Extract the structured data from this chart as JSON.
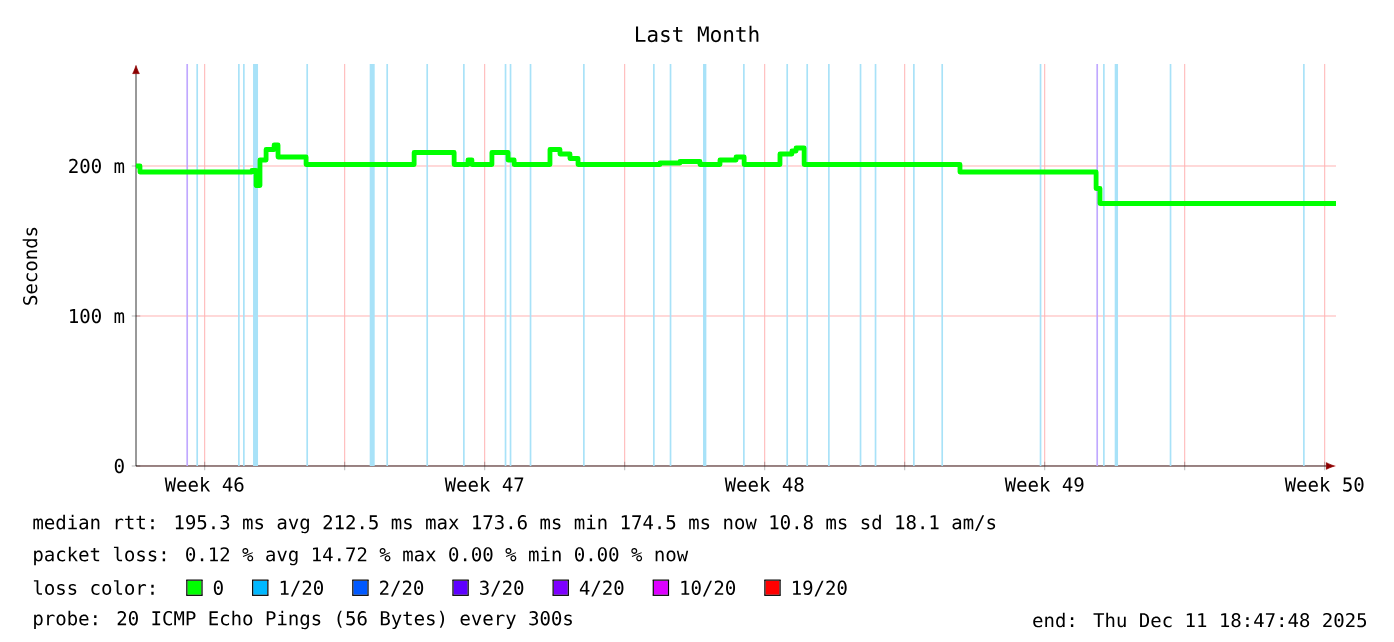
{
  "chart_data": {
    "type": "step",
    "title": "Last Month",
    "ylabel": "Seconds",
    "xlim": [
      "2025-11-11T18:47",
      "2025-12-11T18:47"
    ],
    "ylim": [
      0,
      268
    ],
    "xticks": [
      {
        "value": "2025-11-13T12:00",
        "label": "Week 46"
      },
      {
        "value": "2025-11-17",
        "label": null
      },
      {
        "value": "2025-11-20T12:00",
        "label": "Week 47"
      },
      {
        "value": "2025-11-24",
        "label": null
      },
      {
        "value": "2025-11-27T12:00",
        "label": "Week 48"
      },
      {
        "value": "2025-12-01",
        "label": null
      },
      {
        "value": "2025-12-04T12:00",
        "label": "Week 49"
      },
      {
        "value": "2025-12-08",
        "label": null
      },
      {
        "value": "2025-12-11T12:00",
        "label": "Week 50"
      }
    ],
    "yticks": [
      0,
      {
        "value": 100,
        "label": "100 m"
      },
      {
        "value": 200,
        "label": "200 m"
      }
    ],
    "grid": true,
    "legend": "bottom",
    "legend_title": "loss color:",
    "line_style": "solid",
    "x": [
      "2025-11-11T18:47",
      "2025-11-11T21:10",
      "2025-11-14T12:50",
      "2025-11-14T16:20",
      "2025-11-14T18:50",
      "2025-11-14T21:10",
      "2025-11-15T00:50",
      "2025-11-15T05:40",
      "2025-11-15T08:00",
      "2025-11-15T18:50",
      "2025-11-16T00:50",
      "2025-11-18T15:10",
      "2025-11-18T17:40",
      "2025-11-19T15:10",
      "2025-11-19T17:40",
      "2025-11-19T23:40",
      "2025-11-20T02:00",
      "2025-11-20T04:20",
      "2025-11-20T14:00",
      "2025-11-20T16:20",
      "2025-11-20T23:40",
      "2025-11-21T02:00",
      "2025-11-21T05:40",
      "2025-11-22T00:50",
      "2025-11-22T03:10",
      "2025-11-22T09:10",
      "2025-11-22T15:10",
      "2025-11-22T20:00",
      "2025-11-24T21:10",
      "2025-11-25T09:10",
      "2025-11-25T21:10",
      "2025-11-26T09:10",
      "2025-11-26T18:50",
      "2025-11-26T23:40",
      "2025-11-27T18:50",
      "2025-11-27T21:10",
      "2025-11-28T04:20",
      "2025-11-28T06:50",
      "2025-11-28T11:40",
      "2025-12-02T06:50",
      "2025-12-02T09:10",
      "2025-12-05T16:20",
      "2025-12-05T18:50",
      "2025-12-05T21:10",
      "2025-12-11T18:47"
    ],
    "series": [
      {
        "name": "0",
        "color": "#00ff00",
        "values": [
          200,
          196,
          196,
          197,
          187,
          204,
          211,
          214,
          206,
          206,
          201,
          201,
          209,
          209,
          201,
          201,
          204,
          201,
          201,
          209,
          209,
          204,
          201,
          201,
          211,
          208,
          205,
          201,
          202,
          203,
          201,
          204,
          206,
          201,
          201,
          208,
          210,
          212,
          201,
          201,
          196,
          196,
          185,
          175,
          175
        ]
      },
      {
        "name": "1/20",
        "color": "#00b8ff",
        "values": [
          null,
          null,
          null,
          null,
          null,
          null,
          null,
          null,
          null,
          null,
          null,
          null,
          null,
          null,
          null,
          null,
          null,
          null,
          null,
          null,
          null,
          null,
          null,
          null,
          null,
          null,
          null,
          null,
          null,
          null,
          null,
          null,
          null,
          null,
          null,
          null,
          null,
          null,
          null,
          null,
          null,
          null,
          null,
          null,
          null
        ]
      },
      {
        "name": "2/20",
        "color": "#0059ff",
        "values": [
          null,
          null,
          null,
          null,
          null,
          null,
          null,
          null,
          null,
          null,
          null,
          null,
          null,
          null,
          null,
          null,
          null,
          null,
          null,
          null,
          null,
          null,
          null,
          null,
          null,
          null,
          null,
          null,
          null,
          null,
          null,
          null,
          null,
          null,
          null,
          null,
          null,
          null,
          null,
          null,
          null,
          null,
          null,
          null,
          null
        ]
      },
      {
        "name": "3/20",
        "color": "#5e00ff",
        "values": [
          null,
          null,
          null,
          null,
          null,
          null,
          null,
          null,
          null,
          null,
          null,
          null,
          null,
          null,
          null,
          null,
          null,
          null,
          null,
          null,
          null,
          null,
          null,
          null,
          null,
          null,
          null,
          null,
          null,
          null,
          null,
          null,
          null,
          null,
          null,
          null,
          null,
          null,
          null,
          null,
          null,
          null,
          null,
          null,
          null
        ]
      },
      {
        "name": "4/20",
        "color": "#7e00ff",
        "values": [
          null,
          null,
          null,
          null,
          null,
          null,
          null,
          null,
          null,
          null,
          null,
          null,
          null,
          null,
          null,
          null,
          null,
          null,
          null,
          null,
          null,
          null,
          null,
          null,
          null,
          null,
          null,
          null,
          null,
          null,
          null,
          null,
          null,
          null,
          null,
          null,
          null,
          null,
          null,
          null,
          null,
          null,
          null,
          null,
          null
        ]
      },
      {
        "name": "10/20",
        "color": "#dd00ff",
        "values": [
          null,
          null,
          null,
          null,
          null,
          null,
          null,
          null,
          null,
          null,
          null,
          null,
          null,
          null,
          null,
          null,
          null,
          null,
          null,
          null,
          null,
          null,
          null,
          null,
          null,
          null,
          null,
          null,
          null,
          null,
          null,
          null,
          null,
          null,
          null,
          null,
          null,
          null,
          null,
          null,
          null,
          null,
          null,
          null,
          null
        ]
      },
      {
        "name": "19/20",
        "color": "#ff0000",
        "values": [
          null,
          null,
          null,
          null,
          null,
          null,
          null,
          null,
          null,
          null,
          null,
          null,
          null,
          null,
          null,
          null,
          null,
          null,
          null,
          null,
          null,
          null,
          null,
          null,
          null,
          null,
          null,
          null,
          null,
          null,
          null,
          null,
          null,
          null,
          null,
          null,
          null,
          null,
          null,
          null,
          null,
          null,
          null,
          null,
          null
        ]
      }
    ],
    "bands": [
      {
        "axis": "x",
        "from": "2025-11-13T01:00",
        "to": "2025-11-13T02:00",
        "color": "#c0a8ff"
      },
      {
        "axis": "x",
        "from": "2025-11-13T07:00",
        "to": "2025-11-13T08:00",
        "color": "#a8e2f8"
      },
      {
        "axis": "x",
        "from": "2025-11-14T08:00",
        "to": "2025-11-14T09:00",
        "color": "#a8e2f8"
      },
      {
        "axis": "x",
        "from": "2025-11-14T11:00",
        "to": "2025-11-14T12:00",
        "color": "#a8e2f8"
      },
      {
        "axis": "x",
        "from": "2025-11-14T17:00",
        "to": "2025-11-14T20:00",
        "color": "#a8e2f8"
      },
      {
        "axis": "x",
        "from": "2025-11-16T01:00",
        "to": "2025-11-16T02:00",
        "color": "#a8e2f8"
      },
      {
        "axis": "x",
        "from": "2025-11-17T15:00",
        "to": "2025-11-17T18:00",
        "color": "#a8e2f8"
      },
      {
        "axis": "x",
        "from": "2025-11-18T01:00",
        "to": "2025-11-18T02:00",
        "color": "#a8e2f8"
      },
      {
        "axis": "x",
        "from": "2025-11-19T01:00",
        "to": "2025-11-19T02:00",
        "color": "#a8e2f8"
      },
      {
        "axis": "x",
        "from": "2025-11-19T23:00",
        "to": "2025-11-20T00:00",
        "color": "#a8e2f8"
      },
      {
        "axis": "x",
        "from": "2025-11-21T00:00",
        "to": "2025-11-21T01:00",
        "color": "#a8e2f8"
      },
      {
        "axis": "x",
        "from": "2025-11-21T03:00",
        "to": "2025-11-21T04:00",
        "color": "#a8e2f8"
      },
      {
        "axis": "x",
        "from": "2025-11-21T15:00",
        "to": "2025-11-21T16:00",
        "color": "#a8e2f8"
      },
      {
        "axis": "x",
        "from": "2025-11-22T23:00",
        "to": "2025-11-23T00:00",
        "color": "#a8e2f8"
      },
      {
        "axis": "x",
        "from": "2025-11-24T17:00",
        "to": "2025-11-24T18:00",
        "color": "#a8e2f8"
      },
      {
        "axis": "x",
        "from": "2025-11-25T03:00",
        "to": "2025-11-25T04:00",
        "color": "#a8e2f8"
      },
      {
        "axis": "x",
        "from": "2025-11-25T23:00",
        "to": "2025-11-26T01:00",
        "color": "#a8e2f8"
      },
      {
        "axis": "x",
        "from": "2025-11-26T23:00",
        "to": "2025-11-27T00:00",
        "color": "#a8e2f8"
      },
      {
        "axis": "x",
        "from": "2025-11-28T01:00",
        "to": "2025-11-28T02:00",
        "color": "#a8e2f8"
      },
      {
        "axis": "x",
        "from": "2025-11-28T13:00",
        "to": "2025-11-28T14:00",
        "color": "#a8e2f8"
      },
      {
        "axis": "x",
        "from": "2025-11-29T02:00",
        "to": "2025-11-29T03:00",
        "color": "#a8e2f8"
      },
      {
        "axis": "x",
        "from": "2025-11-29T21:00",
        "to": "2025-11-29T22:00",
        "color": "#a8e2f8"
      },
      {
        "axis": "x",
        "from": "2025-11-30T06:00",
        "to": "2025-11-30T07:00",
        "color": "#a8e2f8"
      },
      {
        "axis": "x",
        "from": "2025-12-01T05:00",
        "to": "2025-12-01T06:00",
        "color": "#a8e2f8"
      },
      {
        "axis": "x",
        "from": "2025-12-01T22:00",
        "to": "2025-12-01T23:00",
        "color": "#a8e2f8"
      },
      {
        "axis": "x",
        "from": "2025-12-04T09:00",
        "to": "2025-12-04T10:00",
        "color": "#a8e2f8"
      },
      {
        "axis": "x",
        "from": "2025-12-05T19:00",
        "to": "2025-12-05T20:00",
        "color": "#c0a8ff"
      },
      {
        "axis": "x",
        "from": "2025-12-05T23:00",
        "to": "2025-12-06T00:00",
        "color": "#a8e2f8"
      },
      {
        "axis": "x",
        "from": "2025-12-06T06:00",
        "to": "2025-12-06T08:00",
        "color": "#a8e2f8"
      },
      {
        "axis": "x",
        "from": "2025-12-07T15:00",
        "to": "2025-12-07T16:00",
        "color": "#a8e2f8"
      },
      {
        "axis": "x",
        "from": "2025-12-10T23:00",
        "to": "2025-12-11T00:00",
        "color": "#a8e2f8"
      }
    ],
    "annotations": [
      "median rtt: 195.3 ms avg 212.5 ms max 173.6 ms min 174.5 ms now 10.8 ms sd 18.1 am/s",
      "packet loss: 0.12 % avg 14.72 % max 0.00 % min 0.00 % now",
      "probe: 20 ICMP Echo Pings (56 Bytes) every 300s",
      "end: Thu Dec 11 18:47:48 2025"
    ]
  }
}
